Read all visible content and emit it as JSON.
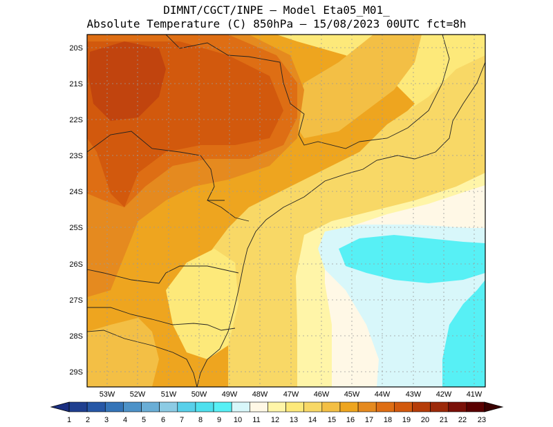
{
  "title": {
    "line1": "DIMNT/CGCT/INPE –  Model Eta05_M01_",
    "line2": "Absolute Temperature (C) 850hPa –  15/08/2023 00UTC fct=8h"
  },
  "axes": {
    "lat_labels": [
      "20S",
      "21S",
      "22S",
      "23S",
      "24S",
      "25S",
      "26S",
      "27S",
      "28S",
      "29S"
    ],
    "lon_labels": [
      "53W",
      "52W",
      "51W",
      "50W",
      "49W",
      "48W",
      "47W",
      "46W",
      "45W",
      "44W",
      "43W",
      "42W",
      "41W"
    ]
  },
  "colorbar": {
    "labels": [
      "1",
      "2",
      "3",
      "4",
      "5",
      "6",
      "7",
      "8",
      "9",
      "10",
      "11",
      "12",
      "13",
      "14",
      "15",
      "16",
      "17",
      "18",
      "19",
      "20",
      "21",
      "22",
      "23"
    ],
    "colors": [
      "#1f3f8f",
      "#2657a6",
      "#3474b8",
      "#4d92c8",
      "#6aaed6",
      "#8ccbe4",
      "#58d0ea",
      "#4ee0ee",
      "#57f0f5",
      "#d8f7fa",
      "#fff8e6",
      "#fff5a8",
      "#fde97a",
      "#f8d866",
      "#f3bf45",
      "#eea51f",
      "#e58a1f",
      "#de6e14",
      "#d2590d",
      "#b53c08",
      "#9c2a0a",
      "#7a1008",
      "#5a0000"
    ],
    "low_arrow_color": "#1a2e80",
    "high_arrow_color": "#3a0000"
  },
  "map": {
    "colors": {
      "t21": "#c1440e",
      "t20": "#d2590d",
      "t19": "#de6e14",
      "t18": "#e58a1f",
      "t17": "#eea51f",
      "t16": "#f3bf45",
      "t15": "#f8d866",
      "t14": "#fde97a",
      "t13": "#fff5a8",
      "t12": "#fff8e6",
      "t11": "#d8f7fa",
      "t10": "#57f0f5"
    }
  }
}
